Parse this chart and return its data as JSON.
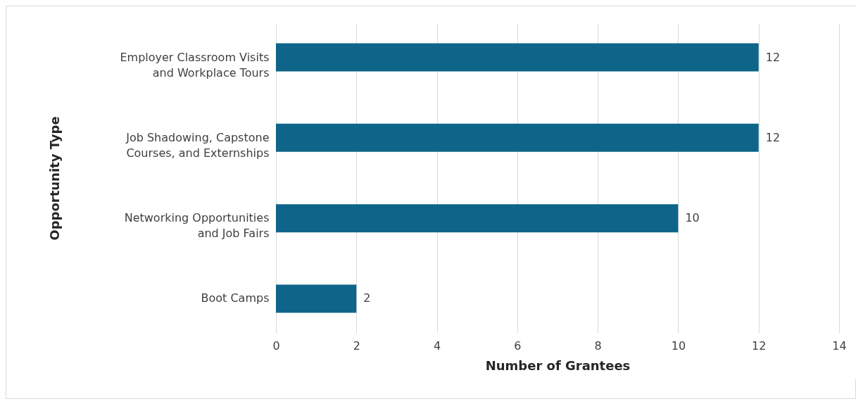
{
  "chart_data": {
    "type": "bar",
    "orientation": "horizontal",
    "xlabel": "Number of Grantees",
    "ylabel": "Opportunity Type",
    "categories": [
      "Employer Classroom Visits and Workplace Tours",
      "Job Shadowing, Capstone Courses, and Externships",
      "Networking Opportunities and Job Fairs",
      "Boot Camps"
    ],
    "values": [
      12,
      12,
      10,
      2
    ],
    "color": "#0e6589",
    "xlim": [
      0,
      14
    ],
    "xticks": [
      0,
      2,
      4,
      6,
      8,
      10,
      12,
      14
    ],
    "grid": "x",
    "data_labels": true
  }
}
